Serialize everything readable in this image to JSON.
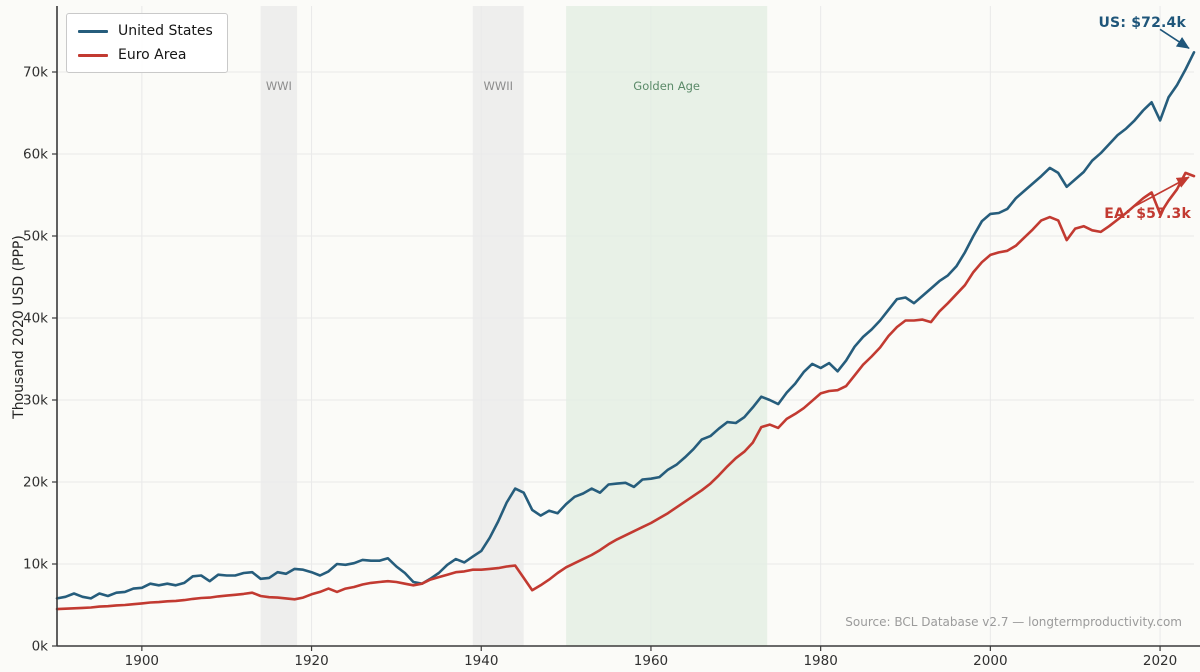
{
  "source_note": "Source: BCL Database v2.7 — longtermproductivity.com",
  "chart_data": {
    "type": "line",
    "title": "",
    "ylabel": "Thousand 2020 USD (PPP)",
    "xlim": [
      1890,
      2024
    ],
    "ylim": [
      0,
      78
    ],
    "grid": true,
    "legend_position": "upper-left",
    "x_start": 1890,
    "x_step": 1,
    "x_tick_values": [
      1900,
      1920,
      1940,
      1960,
      1980,
      2000,
      2020
    ],
    "x_tick_labels": [
      "1900",
      "1920",
      "1940",
      "1960",
      "1980",
      "2000",
      "2020"
    ],
    "y_tick_values": [
      0,
      10,
      20,
      30,
      40,
      50,
      60,
      70
    ],
    "y_tick_labels": [
      "0k",
      "10k",
      "20k",
      "30k",
      "40k",
      "50k",
      "60k",
      "70k"
    ],
    "bands": [
      {
        "label": "WWI",
        "start": 1914,
        "end": 1918.3,
        "color": "#eaeaea",
        "label_color": "#8c8c8c"
      },
      {
        "label": "WWII",
        "start": 1939,
        "end": 1945,
        "color": "#eaeaea",
        "label_color": "#8c8c8c"
      },
      {
        "label": "Golden Age",
        "start": 1950,
        "end": 1973.7,
        "color": "#e3eee3",
        "label_color": "#5a8a68"
      }
    ],
    "series": [
      {
        "name": "United States",
        "color": "#265d7c",
        "values": [
          5.8,
          6.0,
          6.4,
          6.0,
          5.8,
          6.4,
          6.1,
          6.5,
          6.6,
          7.0,
          7.1,
          7.6,
          7.4,
          7.6,
          7.4,
          7.7,
          8.5,
          8.6,
          7.9,
          8.7,
          8.6,
          8.6,
          8.9,
          9.0,
          8.2,
          8.3,
          9.0,
          8.8,
          9.4,
          9.3,
          9.0,
          8.6,
          9.1,
          10.0,
          9.9,
          10.1,
          10.5,
          10.4,
          10.4,
          10.7,
          9.7,
          8.9,
          7.8,
          7.6,
          8.2,
          8.9,
          9.9,
          10.6,
          10.2,
          10.9,
          11.6,
          13.2,
          15.2,
          17.5,
          19.2,
          18.7,
          16.6,
          15.9,
          16.5,
          16.2,
          17.3,
          18.2,
          18.6,
          19.2,
          18.7,
          19.7,
          19.8,
          19.9,
          19.4,
          20.3,
          20.4,
          20.6,
          21.5,
          22.1,
          23.0,
          24.0,
          25.2,
          25.6,
          26.5,
          27.3,
          27.2,
          27.9,
          29.1,
          30.4,
          30.0,
          29.5,
          30.9,
          32.0,
          33.4,
          34.4,
          33.9,
          34.5,
          33.5,
          34.8,
          36.5,
          37.7,
          38.6,
          39.7,
          41.0,
          42.3,
          42.5,
          41.8,
          42.7,
          43.6,
          44.5,
          45.2,
          46.3,
          48.0,
          50.0,
          51.8,
          52.7,
          52.8,
          53.3,
          54.6,
          55.5,
          56.4,
          57.3,
          58.3,
          57.7,
          56.0,
          56.9,
          57.8,
          59.2,
          60.1,
          61.2,
          62.3,
          63.1,
          64.1,
          65.3,
          66.3,
          64.1,
          66.9,
          68.4,
          70.3,
          72.4
        ]
      },
      {
        "name": "Euro Area",
        "color": "#c23a31",
        "values": [
          4.5,
          4.55,
          4.6,
          4.65,
          4.7,
          4.8,
          4.85,
          4.95,
          5.0,
          5.1,
          5.2,
          5.3,
          5.35,
          5.45,
          5.5,
          5.6,
          5.75,
          5.85,
          5.9,
          6.05,
          6.15,
          6.25,
          6.35,
          6.5,
          6.1,
          5.95,
          5.9,
          5.8,
          5.7,
          5.9,
          6.3,
          6.6,
          7.0,
          6.6,
          7.0,
          7.2,
          7.5,
          7.7,
          7.8,
          7.9,
          7.8,
          7.6,
          7.4,
          7.6,
          8.1,
          8.4,
          8.7,
          9.0,
          9.1,
          9.3,
          9.3,
          9.4,
          9.5,
          9.7,
          9.8,
          8.3,
          6.8,
          7.4,
          8.1,
          8.9,
          9.6,
          10.1,
          10.6,
          11.1,
          11.7,
          12.4,
          13.0,
          13.5,
          14.0,
          14.5,
          15.0,
          15.6,
          16.2,
          16.9,
          17.6,
          18.3,
          19.0,
          19.8,
          20.8,
          21.9,
          22.9,
          23.7,
          24.8,
          26.7,
          27.0,
          26.6,
          27.7,
          28.3,
          29.0,
          29.9,
          30.8,
          31.1,
          31.2,
          31.7,
          33.0,
          34.3,
          35.3,
          36.4,
          37.8,
          38.9,
          39.7,
          39.7,
          39.8,
          39.5,
          40.8,
          41.8,
          42.9,
          44.0,
          45.6,
          46.8,
          47.7,
          48.0,
          48.2,
          48.8,
          49.8,
          50.8,
          51.9,
          52.3,
          51.9,
          49.5,
          50.9,
          51.2,
          50.7,
          50.5,
          51.2,
          52.0,
          52.8,
          53.7,
          54.6,
          55.3,
          52.7,
          54.3,
          55.7,
          57.7,
          57.3
        ]
      }
    ],
    "annotations": [
      {
        "text": "US: $72.4k",
        "color": "#1f567a",
        "year": 2024,
        "value": 72.4
      },
      {
        "text": "EA: $57.3k",
        "color": "#c23a31",
        "year": 2024,
        "value": 57.3
      }
    ]
  }
}
